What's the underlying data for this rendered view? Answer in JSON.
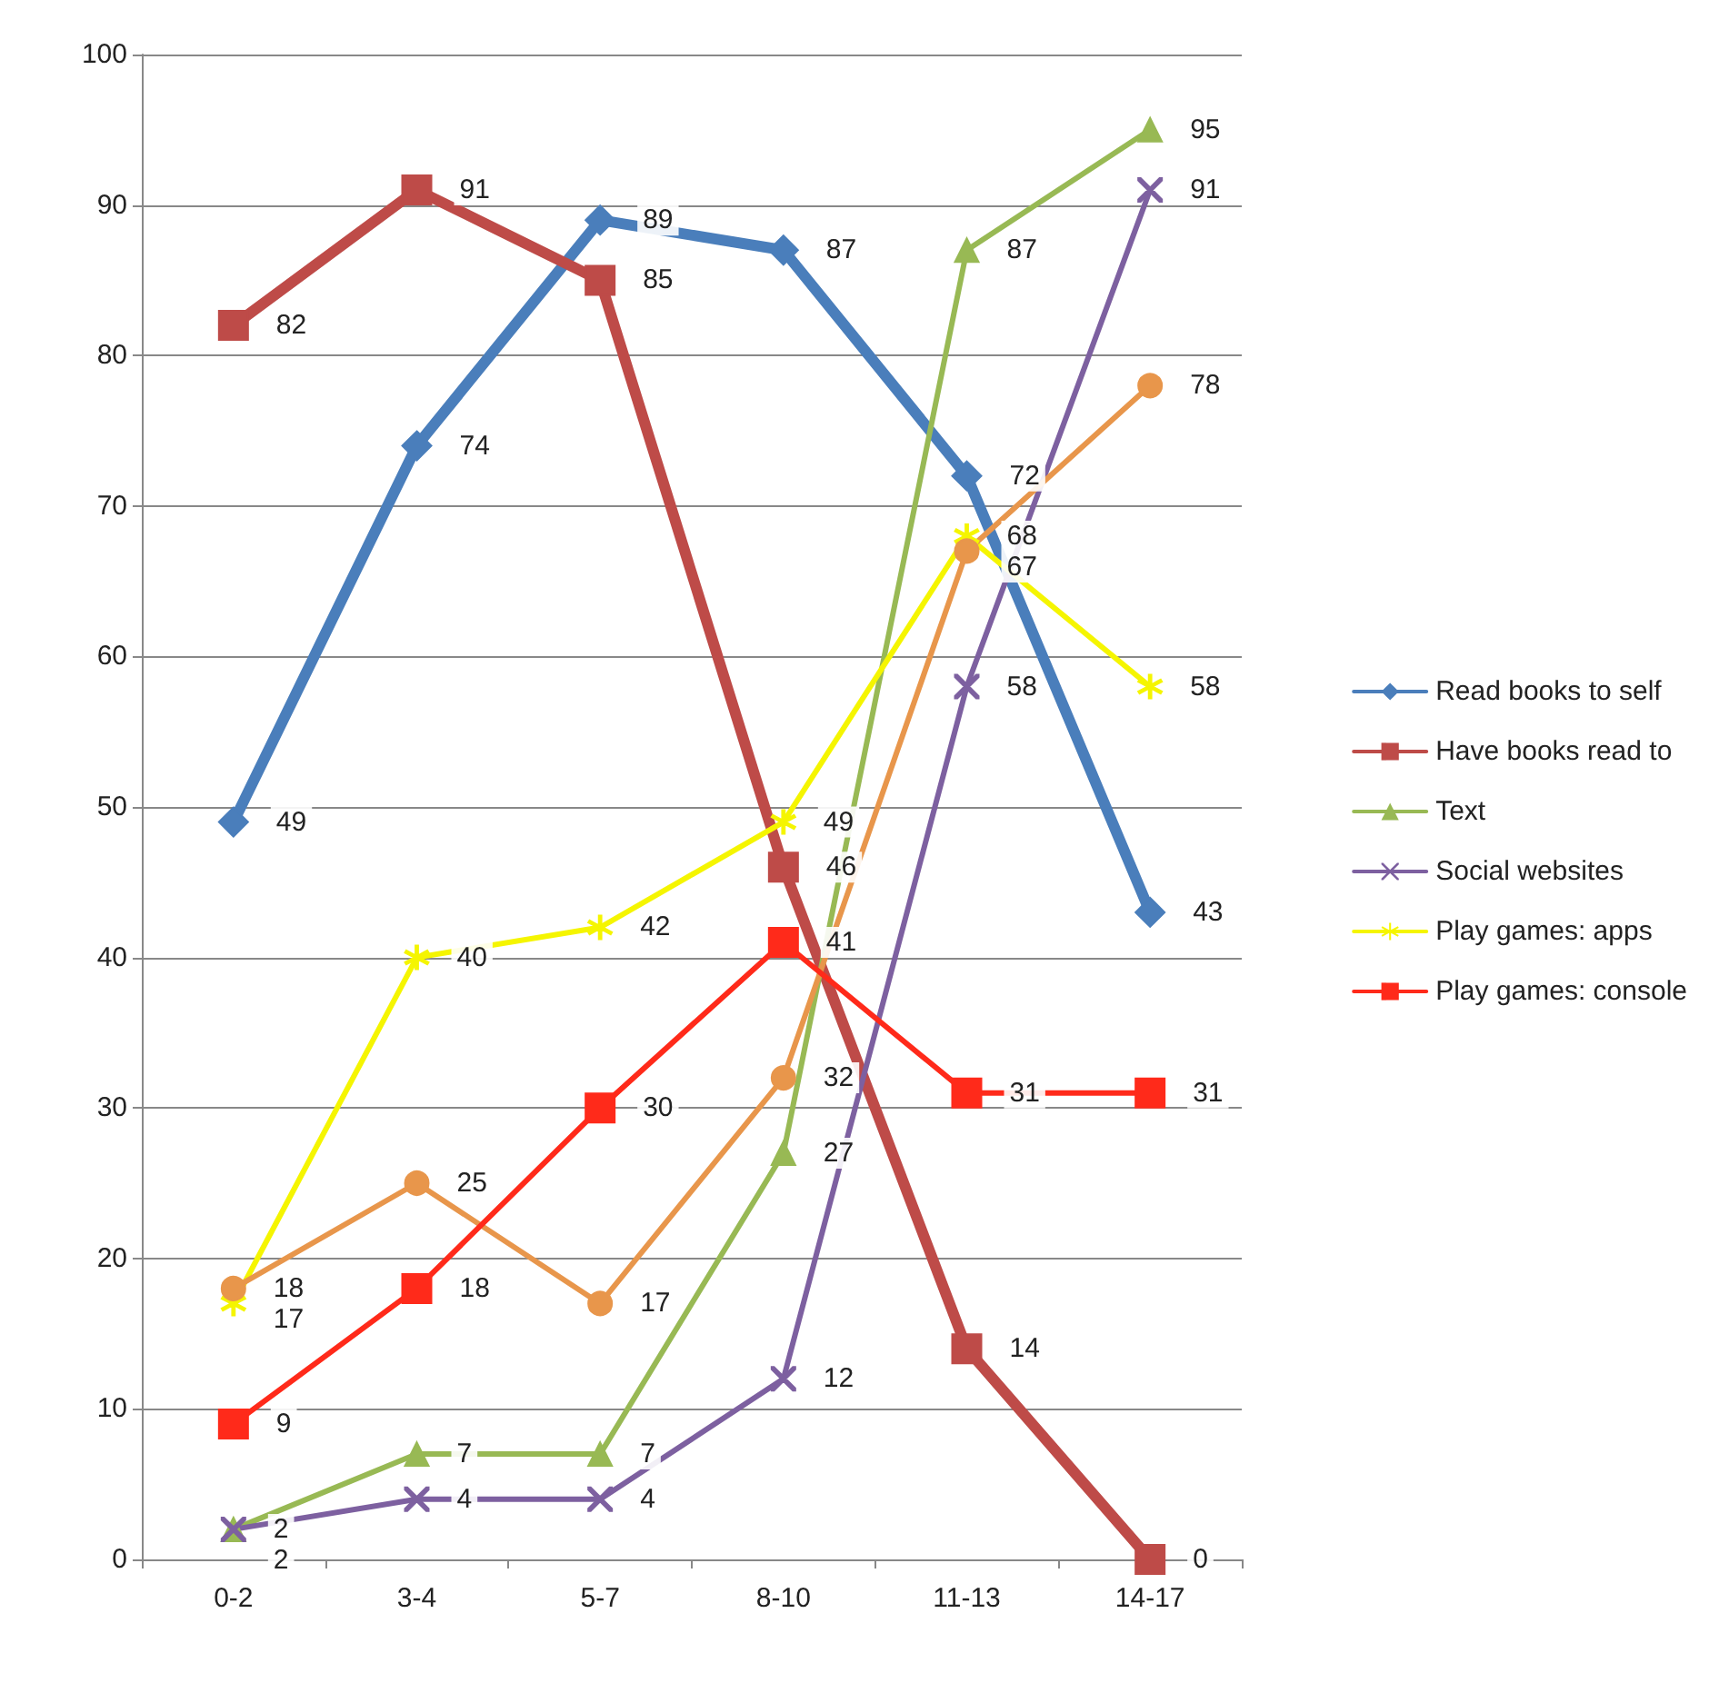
{
  "chart_data": {
    "type": "line",
    "categories": [
      "0-2",
      "3-4",
      "5-7",
      "8-10",
      "11-13",
      "14-17"
    ],
    "series": [
      {
        "name": "Read books to self",
        "color": "#4a7ebb",
        "marker": "diamond",
        "values": [
          49,
          74,
          89,
          87,
          72,
          43
        ]
      },
      {
        "name": "Have books read to",
        "color": "#be4b48",
        "marker": "square",
        "values": [
          82,
          91,
          85,
          46,
          14,
          0
        ]
      },
      {
        "name": "Text",
        "color": "#98b954",
        "marker": "triangle",
        "values": [
          2,
          7,
          7,
          27,
          87,
          95
        ]
      },
      {
        "name": "Social websites",
        "color": "#7d60a0",
        "marker": "cross",
        "values": [
          2,
          4,
          4,
          12,
          58,
          91
        ]
      },
      {
        "name": "Play games: apps",
        "color": "#f5f500",
        "marker": "star",
        "values": [
          17,
          40,
          42,
          49,
          68,
          58
        ]
      },
      {
        "color": "#e8964b",
        "marker": "circle",
        "values": [
          18,
          25,
          17,
          32,
          67,
          78
        ]
      },
      {
        "name": "Play games: console",
        "color": "#ff2a1a",
        "marker": "square",
        "values": [
          9,
          18,
          30,
          41,
          31,
          31
        ]
      }
    ],
    "ylim": [
      0,
      100
    ],
    "yticks": [
      0,
      10,
      20,
      30,
      40,
      50,
      60,
      70,
      80,
      90,
      100
    ],
    "grid": "y",
    "legend": "right",
    "data_labels": true
  }
}
